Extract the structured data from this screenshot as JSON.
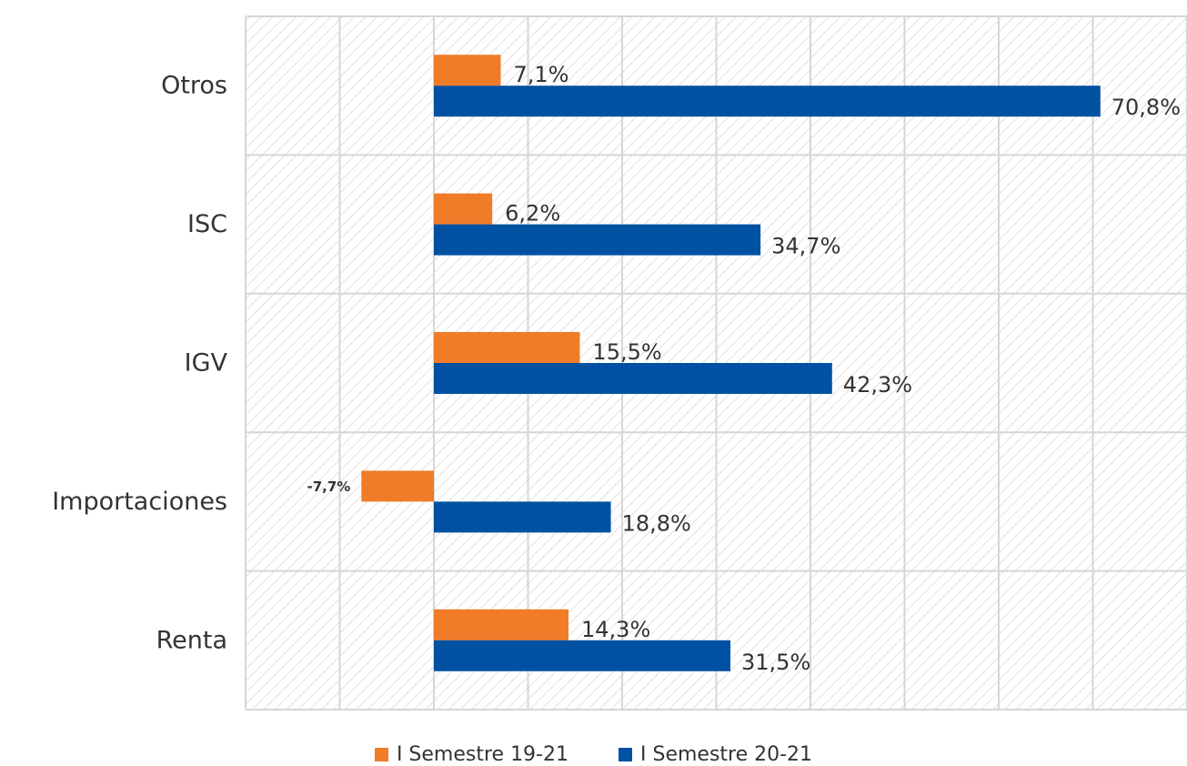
{
  "colors": {
    "series_1": "#F07C28",
    "series_2": "#0051A2",
    "grid": "#d6d6d6",
    "hatch": "#c9c9c9"
  },
  "chart_data": {
    "type": "bar",
    "orientation": "horizontal",
    "categories": [
      "Otros",
      "ISC",
      "IGV",
      "Importaciones",
      "Renta"
    ],
    "series": [
      {
        "name": "I Semestre 19-21",
        "values": [
          7.1,
          6.2,
          15.5,
          -7.7,
          14.3
        ],
        "labels": [
          "7,1%",
          "6,2%",
          "15,5%",
          "-7,7%",
          "14,3%"
        ]
      },
      {
        "name": "I Semestre 20-21",
        "values": [
          70.8,
          34.7,
          42.3,
          18.8,
          31.5
        ],
        "labels": [
          "70,8%",
          "34,7%",
          "42,3%",
          "18,8%",
          "31,5%"
        ]
      }
    ],
    "xlim": [
      -20,
      80
    ],
    "grid": true,
    "hatched_background": true,
    "legend_position": "bottom"
  },
  "legend": [
    {
      "label": "I Semestre 19-21"
    },
    {
      "label": "I Semestre 20-21"
    }
  ]
}
